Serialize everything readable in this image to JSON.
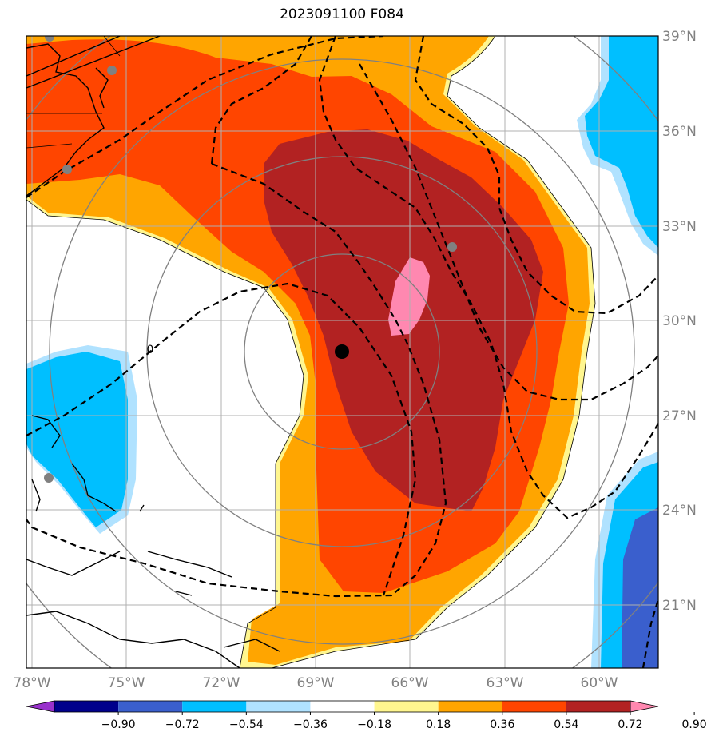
{
  "title": "2023091100 F084",
  "lon_labels": [
    "78°W",
    "75°W",
    "72°W",
    "69°W",
    "66°W",
    "63°W",
    "60°W"
  ],
  "lat_labels": [
    "39°N",
    "36°N",
    "33°N",
    "30°N",
    "27°N",
    "24°N",
    "21°N"
  ],
  "contour_label": "0",
  "colorbar": {
    "ticks": [
      "−0.90",
      "−0.72",
      "−0.54",
      "−0.36",
      "−0.18",
      "0.18",
      "0.36",
      "0.54",
      "0.72",
      "0.90"
    ],
    "colors": [
      "#9932cc",
      "#00008b",
      "#3a5fcd",
      "#00bfff",
      "#b0e2ff",
      "#ffffff",
      "#fff68f",
      "#ffa500",
      "#ff4500",
      "#b22222",
      "#ff88b0"
    ]
  },
  "storm_center_color": "#000000"
}
